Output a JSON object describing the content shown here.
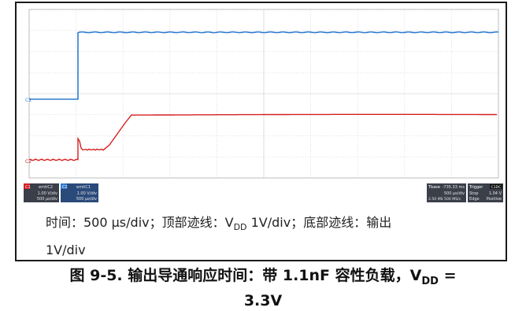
{
  "scope": {
    "ch2_marker": "C2",
    "ch1_marker": "C1",
    "ch1_label": "C1",
    "ch1_id": "emtiC2",
    "ch1_scale": "1.00 V/div",
    "ch1_time": "500 μs/div",
    "ch2_label": "C2",
    "ch2_id": "emtiC1",
    "ch2_scale": "1.00 V/div",
    "ch2_time": "500 μs/div",
    "tbase_label": "Tbase",
    "tbase_value": "-735.33 ms",
    "tbase_div": "500 μs/div",
    "tbase_rate": "2.50 MS  500 MS/s",
    "trigger_label": "Trigger",
    "trigger_tag": "C1DC",
    "trigger_mode": "Stop",
    "trigger_level": "1.04 V",
    "trigger_type": "Edge",
    "trigger_slope": "Positive",
    "colors": {
      "top_trace": "#2e7bcf",
      "bottom_trace": "#d42020",
      "grid": "#c8c8c8"
    }
  },
  "caption": {
    "line1_a": "时间：500 μs/div；顶部迹线：V",
    "line1_sub": "DD",
    "line1_b": " 1V/div；底部迹线：输出",
    "line2": "1V/div"
  },
  "title": {
    "part_a": "图 9-5. 输出导通响应时间：带 1.1nF 容性负载，V",
    "sub": "DD",
    "part_b": " =",
    "line2": "3.3V"
  }
}
